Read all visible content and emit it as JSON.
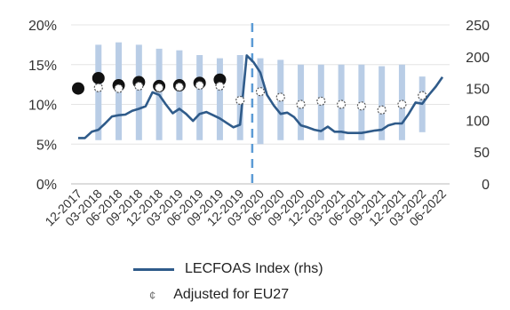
{
  "chart_data": {
    "type": "bar",
    "categories": [
      "12-2017",
      "03-2018",
      "06-2018",
      "09-2018",
      "12-2018",
      "03-2019",
      "06-2019",
      "09-2019",
      "12-2019",
      "03-2020",
      "06-2020",
      "09-2020",
      "12-2020",
      "03-2021",
      "06-2021",
      "09-2021",
      "12-2021",
      "03-2022",
      "06-2022"
    ],
    "y_left": {
      "min": 0,
      "max": 20,
      "ticks": [
        "0%",
        "5%",
        "10%",
        "15%",
        "20%"
      ]
    },
    "y_right": {
      "min": 0,
      "max": 250,
      "ticks": [
        "0",
        "50",
        "100",
        "150",
        "200",
        "250"
      ]
    },
    "bands": {
      "color": "#b9cde6",
      "low": [
        null,
        5.5,
        5.5,
        5.5,
        5.5,
        5.5,
        5.5,
        5.5,
        5.5,
        5.0,
        5.5,
        5.5,
        5.5,
        5.5,
        5.5,
        5.5,
        5.5,
        6.5,
        null
      ],
      "high": [
        null,
        17.5,
        17.8,
        17.5,
        17.0,
        16.8,
        16.2,
        15.8,
        16.2,
        15.8,
        15.6,
        15.0,
        15.0,
        15.0,
        15.0,
        14.8,
        15.0,
        13.5,
        null
      ]
    },
    "series": [
      {
        "name": "LECFOAS Index (rhs)",
        "color": "#2f5b8a",
        "axis": "right",
        "x": [
          0,
          0.33,
          0.67,
          1,
          1.33,
          1.67,
          2,
          2.33,
          2.67,
          3,
          3.33,
          3.67,
          4,
          4.33,
          4.67,
          5,
          5.33,
          5.67,
          6,
          6.33,
          6.67,
          7,
          7.33,
          7.67,
          8,
          8.33,
          8.67,
          9,
          9.33,
          9.67,
          10,
          10.33,
          10.67,
          11,
          11.33,
          11.67,
          12,
          12.33,
          12.67,
          13,
          13.33,
          13.67,
          14,
          14.33,
          14.67,
          15,
          15.33,
          15.67,
          16,
          16.33,
          16.67,
          17,
          17.33,
          17.67,
          18
        ],
        "values": [
          72,
          72,
          82,
          85,
          95,
          106,
          108,
          109,
          115,
          118,
          122,
          144,
          140,
          125,
          111,
          118,
          110,
          99,
          110,
          113,
          108,
          103,
          96,
          89,
          93,
          202,
          191,
          175,
          140,
          123,
          110,
          112,
          105,
          92,
          89,
          85,
          83,
          90,
          82,
          82,
          80,
          80,
          80,
          82,
          84,
          85,
          92,
          95,
          95,
          110,
          128,
          126,
          140,
          153,
          168
        ]
      },
      {
        "name": "",
        "color": "#111111",
        "axis": "left",
        "style": "filled-dot",
        "x": [
          0,
          1,
          2,
          3,
          4,
          5,
          6,
          7
        ],
        "values": [
          12.0,
          13.3,
          12.4,
          12.8,
          12.3,
          12.4,
          12.7,
          13.1
        ]
      },
      {
        "name": "Adjusted for EU27",
        "color": "#555555",
        "axis": "left",
        "style": "hollow-dot",
        "x": [
          1,
          2,
          3,
          4,
          5,
          6,
          7,
          8,
          9,
          10,
          11,
          12,
          13,
          14,
          15,
          16,
          17
        ],
        "values": [
          12.1,
          12.0,
          12.3,
          12.1,
          12.2,
          12.4,
          12.3,
          10.5,
          11.6,
          10.9,
          10.0,
          10.4,
          10.0,
          9.8,
          9.3,
          10.0,
          11.1
        ]
      }
    ],
    "vline": {
      "x": 8.6,
      "color": "#5b9bd5",
      "style": "dashed"
    },
    "legend": {
      "placement": "bottom"
    }
  },
  "legend": {
    "line_label": "LECFOAS Index (rhs)",
    "dot_label": "Adjusted for EU27",
    "dot_glyph": "¢"
  }
}
